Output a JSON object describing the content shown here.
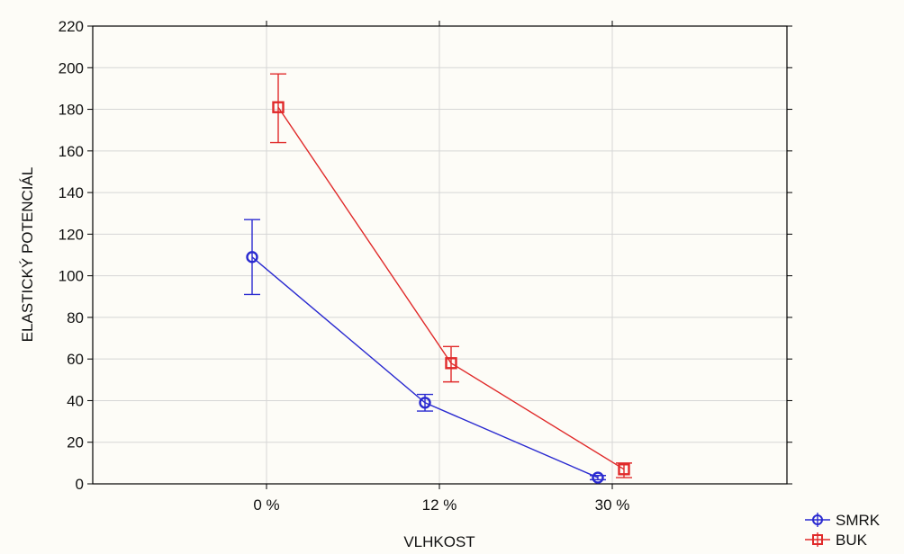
{
  "chart_data": {
    "type": "line",
    "title": "",
    "xlabel": "VLHKOST",
    "ylabel": "ELASTICKÝ POTENCIÁL",
    "categories": [
      "0 %",
      "12 %",
      "30 %"
    ],
    "ylim": [
      0,
      220
    ],
    "yticks": [
      0,
      20,
      40,
      60,
      80,
      100,
      120,
      140,
      160,
      180,
      200,
      220
    ],
    "grid": true,
    "legend_position": "bottom-right",
    "error_bars": true,
    "series": [
      {
        "name": "SMRK",
        "color": "#2a2ad0",
        "marker": "circle",
        "values": [
          109,
          39,
          3
        ],
        "error_low": [
          91,
          35,
          2
        ],
        "error_high": [
          127,
          43,
          4
        ]
      },
      {
        "name": "BUK",
        "color": "#e02a2a",
        "marker": "square",
        "values": [
          181,
          58,
          7
        ],
        "error_low": [
          164,
          49,
          3
        ],
        "error_high": [
          197,
          66,
          10
        ]
      }
    ]
  }
}
